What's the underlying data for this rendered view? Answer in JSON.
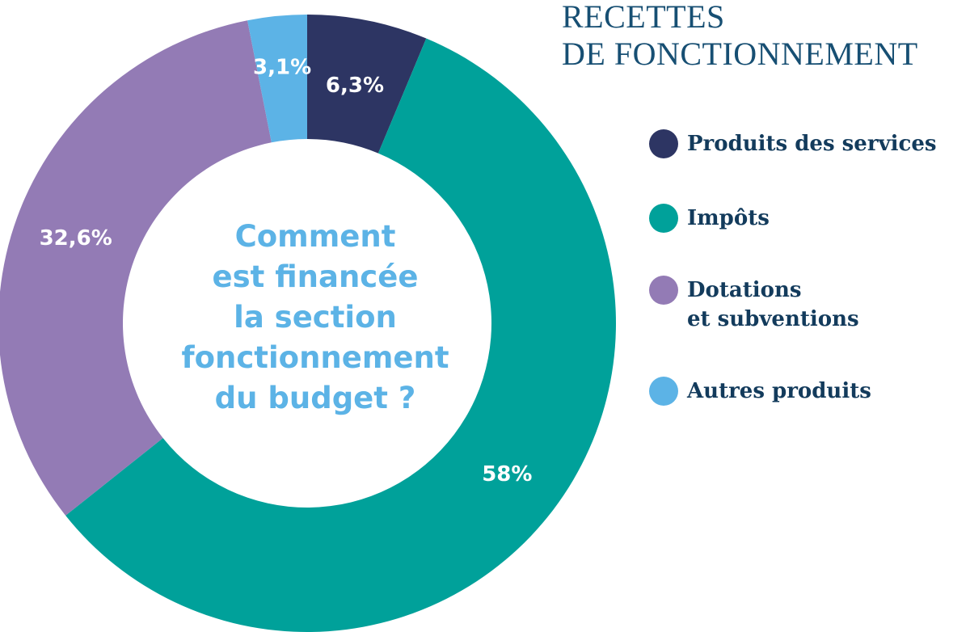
{
  "chart_data": {
    "type": "pie",
    "title": [
      "RECETTES",
      "DE FONCTIONNEMENT"
    ],
    "center_text": [
      "Comment",
      "est financée",
      "la section",
      "fonctionnement",
      "du budget ?"
    ],
    "slices": [
      {
        "name": "Produits des services",
        "value": 6.3,
        "label": "6,3%",
        "color": "#2d3563"
      },
      {
        "name": "Impôts",
        "value": 58,
        "label": "58%",
        "color": "#00a19a"
      },
      {
        "name": "Dotations et subventions",
        "value": 32.6,
        "label": "32,6%",
        "color": "#937bb5"
      },
      {
        "name": "Autres produits",
        "value": 3.1,
        "label": "3,1%",
        "color": "#5cb3e6"
      }
    ],
    "legend": {
      "placement": "right",
      "entries": [
        {
          "lines": [
            "Produits des services"
          ],
          "color": "#2d3563"
        },
        {
          "lines": [
            "Impôts"
          ],
          "color": "#00a19a"
        },
        {
          "lines": [
            "Dotations",
            "et subventions"
          ],
          "color": "#937bb5"
        },
        {
          "lines": [
            "Autres produits"
          ],
          "color": "#5cb3e6"
        }
      ]
    }
  }
}
